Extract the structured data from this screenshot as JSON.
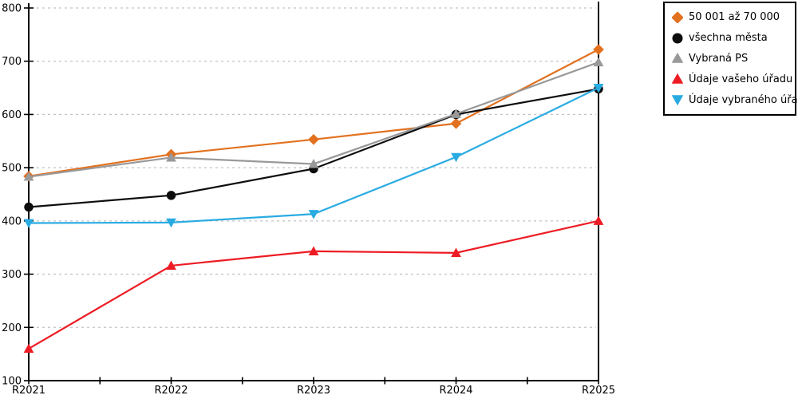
{
  "chart_data": {
    "type": "line",
    "title": "",
    "xlabel": "",
    "ylabel": "",
    "categories": [
      "R2021",
      "R2022",
      "R2023",
      "R2024",
      "R2025"
    ],
    "ylim": [
      100,
      800
    ],
    "y_ticks": [
      100,
      200,
      300,
      400,
      500,
      600,
      700,
      800
    ],
    "grid": "horizontal dashed",
    "legend_position": "top-right",
    "axis_color": "#000000",
    "grid_color": "#c3c3c3",
    "background_color": "#ffffff",
    "series": [
      {
        "name": "50 001 až 70 000",
        "color": "#e2711f",
        "marker": "diamond",
        "values": [
          484,
          525,
          553,
          583,
          722
        ]
      },
      {
        "name": "všechna města",
        "color": "#0d0d0d",
        "marker": "circle",
        "values": [
          426,
          448,
          498,
          600,
          648
        ]
      },
      {
        "name": "Vybraná PS",
        "color": "#999999",
        "marker": "triangle-up",
        "values": [
          483,
          519,
          507,
          601,
          698
        ]
      },
      {
        "name": "Údaje vašeho úřadu",
        "color": "#ed1c24",
        "marker": "triangle-up",
        "values": [
          160,
          316,
          343,
          340,
          400
        ]
      },
      {
        "name": "Údaje vybraného úřadu",
        "color": "#29abe2",
        "marker": "triangle-down",
        "values": [
          396,
          397,
          413,
          520,
          650
        ]
      }
    ]
  }
}
